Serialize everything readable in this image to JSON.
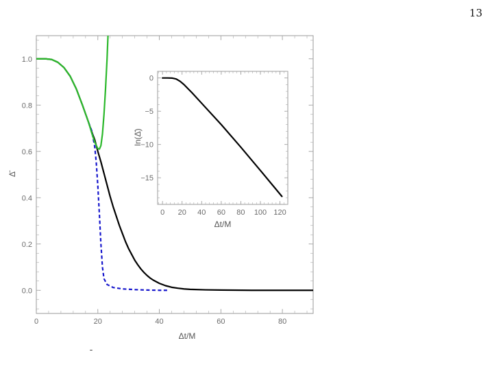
{
  "page": {
    "number": "13",
    "bottom_glyph": "̄"
  },
  "chart_data": [
    {
      "type": "line",
      "title": "",
      "xlabel": "Δt/M",
      "ylabel": "Δ̄",
      "xlim": [
        0,
        90
      ],
      "ylim": [
        -0.1,
        1.1
      ],
      "xticks": [
        0,
        20,
        40,
        60,
        80
      ],
      "yticks": [
        0.0,
        0.2,
        0.4,
        0.6,
        0.8,
        1.0
      ],
      "xtick_labels": [
        "0",
        "20",
        "40",
        "60",
        "80"
      ],
      "ytick_labels": [
        "0.0",
        "0.2",
        "0.4",
        "0.6",
        "0.8",
        "1.0"
      ],
      "grid": false,
      "legend": "none",
      "series": [
        {
          "color": "#000000",
          "style": "solid",
          "x": [
            0,
            3,
            5,
            7,
            9,
            11,
            13,
            15,
            17,
            18,
            19,
            20,
            21,
            22,
            23,
            24,
            25,
            26,
            27,
            28,
            29,
            30,
            31,
            32,
            33,
            34,
            35,
            36,
            37,
            38,
            40,
            42,
            44,
            46,
            48,
            50,
            55,
            60,
            70,
            80,
            90
          ],
          "y": [
            1.0,
            1.0,
            0.997,
            0.985,
            0.962,
            0.925,
            0.87,
            0.8,
            0.725,
            0.685,
            0.65,
            0.6,
            0.555,
            0.505,
            0.455,
            0.405,
            0.36,
            0.32,
            0.28,
            0.245,
            0.21,
            0.18,
            0.155,
            0.13,
            0.11,
            0.092,
            0.077,
            0.064,
            0.053,
            0.044,
            0.03,
            0.02,
            0.013,
            0.009,
            0.006,
            0.004,
            0.002,
            0.001,
            0.0,
            0.0,
            0.0
          ]
        },
        {
          "color": "#1515cc",
          "style": "dashed",
          "x": [
            17,
            18,
            19,
            19.5,
            20,
            20.5,
            21,
            21.5,
            22,
            23,
            25,
            28,
            32,
            36,
            40,
            43
          ],
          "y": [
            0.725,
            0.69,
            0.62,
            0.55,
            0.45,
            0.33,
            0.2,
            0.1,
            0.05,
            0.025,
            0.012,
            0.006,
            0.003,
            0.001,
            0.0,
            0.0
          ]
        },
        {
          "color": "#2bb82b",
          "style": "solid",
          "x": [
            0,
            3,
            5,
            7,
            9,
            11,
            13,
            15,
            17,
            18,
            19,
            20,
            20.5,
            21,
            21.5,
            22,
            22.5,
            23,
            23.3
          ],
          "y": [
            1.0,
            1.0,
            0.997,
            0.985,
            0.962,
            0.925,
            0.87,
            0.8,
            0.725,
            0.68,
            0.64,
            0.612,
            0.61,
            0.625,
            0.675,
            0.76,
            0.87,
            1.0,
            1.1
          ]
        }
      ]
    },
    {
      "type": "line",
      "title": "",
      "xlabel": "Δt/M",
      "ylabel": "ln(Δ̄)",
      "xlim": [
        -5,
        128
      ],
      "ylim": [
        -19,
        1
      ],
      "xticks": [
        0,
        20,
        40,
        60,
        80,
        100,
        120
      ],
      "yticks": [
        0,
        -5,
        -10,
        -15
      ],
      "xtick_labels": [
        "0",
        "20",
        "40",
        "60",
        "80",
        "100",
        "120"
      ],
      "ytick_labels": [
        "0",
        "−5",
        "−10",
        "−15"
      ],
      "grid": false,
      "legend": "none",
      "series": [
        {
          "color": "#000000",
          "style": "solid",
          "x": [
            0,
            5,
            10,
            14,
            18,
            22,
            26,
            30,
            40,
            60,
            80,
            100,
            122
          ],
          "y": [
            0.0,
            0.0,
            -0.02,
            -0.15,
            -0.5,
            -1.0,
            -1.6,
            -2.2,
            -3.8,
            -7.0,
            -10.4,
            -13.9,
            -17.8
          ]
        }
      ]
    }
  ]
}
